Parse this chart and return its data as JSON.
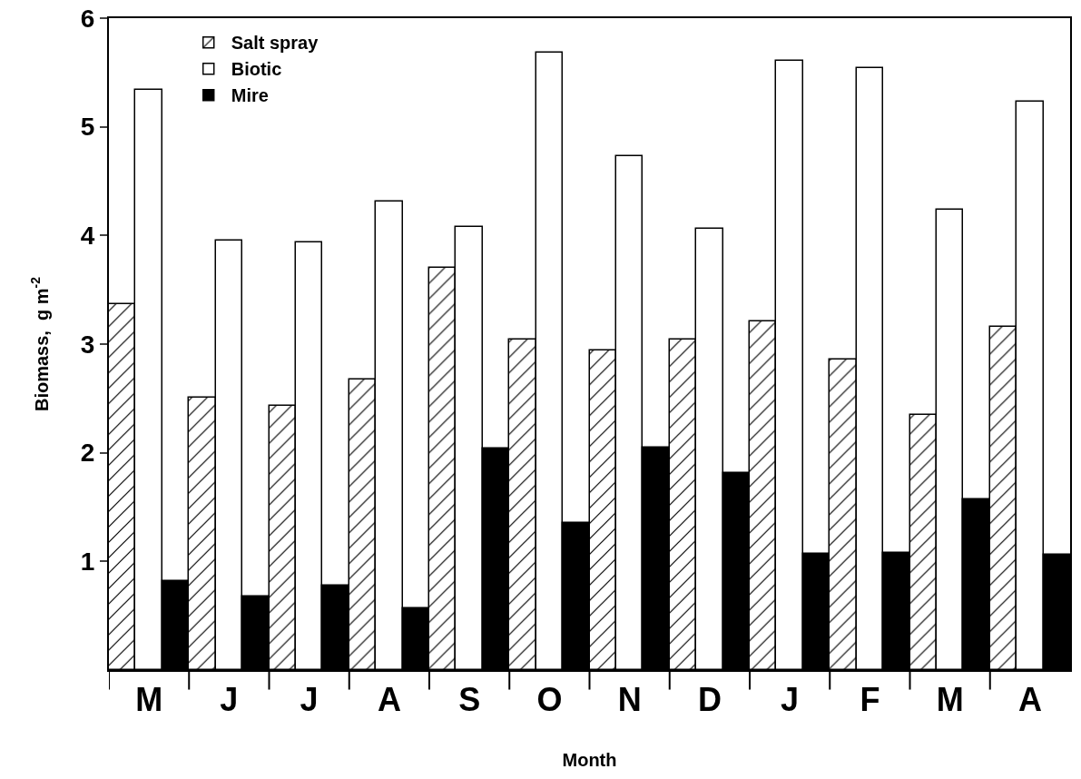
{
  "chart_data": {
    "type": "bar",
    "xlabel": "Month",
    "ylabel": "Biomass,  g m$^{-2}$",
    "categories": [
      "M",
      "J",
      "J",
      "A",
      "S",
      "O",
      "N",
      "D",
      "J",
      "F",
      "M",
      "A"
    ],
    "series": [
      {
        "name": "Salt spray",
        "color": "#000000",
        "values": [
          3.37,
          2.51,
          2.43,
          2.67,
          3.7,
          3.04,
          2.94,
          3.04,
          3.21,
          2.86,
          2.35,
          3.16
        ]
      },
      {
        "name": "Biotic",
        "color": "#ffffff",
        "values": [
          5.34,
          3.95,
          3.94,
          4.31,
          4.08,
          5.68,
          4.73,
          4.06,
          5.61,
          5.54,
          4.24,
          5.23
        ]
      },
      {
        "name": "Mire",
        "color": "#000000",
        "values": [
          0.82,
          0.68,
          0.78,
          0.57,
          2.04,
          1.35,
          2.05,
          1.81,
          1.07,
          1.08,
          1.57,
          1.06
        ]
      }
    ],
    "ylim": [
      0,
      6
    ],
    "yticks": [
      1,
      2,
      3,
      4,
      5,
      6
    ],
    "grid": false,
    "legend": "top left"
  }
}
